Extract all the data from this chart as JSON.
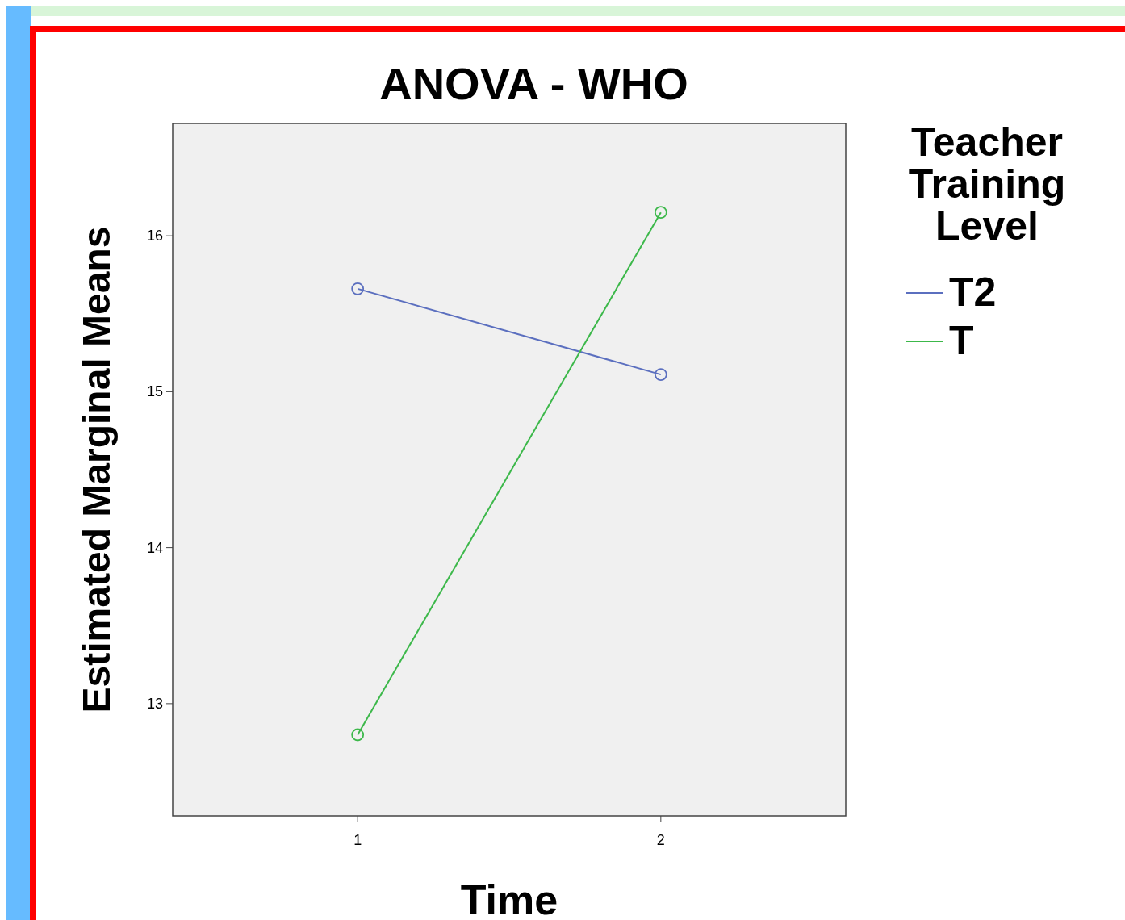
{
  "chart_data": {
    "type": "line",
    "title": "ANOVA - WHO",
    "xlabel": "Time",
    "ylabel": "Estimated Marginal Means",
    "legend_title": "Teacher Training Level",
    "categories": [
      "1",
      "2"
    ],
    "series": [
      {
        "name": "T2",
        "color": "#5b6fbf",
        "values": [
          15.66,
          15.11
        ]
      },
      {
        "name": "T",
        "color": "#3cb84a",
        "values": [
          12.8,
          16.15
        ]
      }
    ],
    "ylim": [
      12.28,
      16.72
    ],
    "yticks": [
      13,
      14,
      15,
      16
    ],
    "grid": false,
    "legend": "right",
    "marker": "circle",
    "line_style": "solid"
  }
}
